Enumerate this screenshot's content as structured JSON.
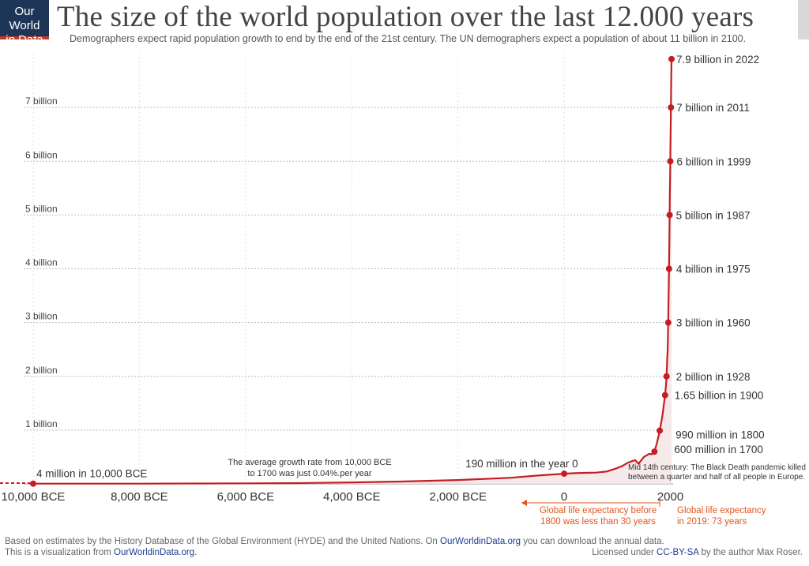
{
  "header": {
    "logo_line1": "Our World",
    "logo_line2": "in Data",
    "title": "The size of the world population over the last 12.000 years",
    "subtitle": "Demographers expect rapid population growth to end by the end of the 21st century. The UN demographers expect a population of about 11 billion in 2100."
  },
  "footer": {
    "source_prefix": "Based on estimates by the History Database of the Global Environment (HYDE) and the United Nations. On ",
    "source_link": "OurWorldinData.org",
    "source_suffix": " you can download the annual data.",
    "viz_prefix": "This is a visualization from ",
    "viz_link": "OurWorldinData.org",
    "viz_suffix": ".",
    "license_prefix": "Licensed under ",
    "license_link": "CC-BY-SA",
    "license_suffix": " by the author Max Roser."
  },
  "colors": {
    "line": "#c41e24",
    "orange_note": "#e2561b",
    "fill": "#f4e3e3",
    "grid": "#bbbbbb",
    "logo_bg": "#1d3557"
  },
  "chart_data": {
    "type": "line",
    "x_unit": "year (negative = BCE)",
    "xlim": [
      -10300,
      2022
    ],
    "ylim": [
      0,
      8000000000
    ],
    "y_ticks": [
      {
        "value": 1000000000,
        "label": "1 billion"
      },
      {
        "value": 2000000000,
        "label": "2 billion"
      },
      {
        "value": 3000000000,
        "label": "3 billion"
      },
      {
        "value": 4000000000,
        "label": "4 billion"
      },
      {
        "value": 5000000000,
        "label": "5 billion"
      },
      {
        "value": 6000000000,
        "label": "6 billion"
      },
      {
        "value": 7000000000,
        "label": "7 billion"
      }
    ],
    "x_ticks": [
      {
        "value": -10000,
        "label": "10,000 BCE"
      },
      {
        "value": -8000,
        "label": "8,000 BCE"
      },
      {
        "value": -6000,
        "label": "6,000 BCE"
      },
      {
        "value": -4000,
        "label": "4,000 BCE"
      },
      {
        "value": -2000,
        "label": "2,000 BCE"
      },
      {
        "value": 0,
        "label": "0"
      },
      {
        "value": 2000,
        "label": "2000"
      }
    ],
    "series": [
      {
        "x": [
          -10000,
          -9000,
          -8000,
          -7000,
          -6000,
          -5000,
          -4000,
          -3000,
          -2000,
          -1000,
          -500,
          0,
          200,
          400,
          600,
          800,
          1000,
          1100,
          1200,
          1300,
          1340,
          1400,
          1500,
          1600,
          1650,
          1700,
          1750,
          1800,
          1850,
          1900,
          1910,
          1920,
          1928,
          1940,
          1950,
          1960,
          1970,
          1975,
          1980,
          1987,
          1990,
          1999,
          2000,
          2011,
          2015,
          2022
        ],
        "y": [
          4000000,
          5000000,
          5000000,
          7000000,
          10000000,
          15000000,
          28000000,
          45000000,
          72000000,
          115000000,
          155000000,
          190000000,
          200000000,
          205000000,
          210000000,
          230000000,
          295000000,
          335000000,
          395000000,
          430000000,
          440000000,
          375000000,
          500000000,
          560000000,
          550000000,
          600000000,
          770000000,
          990000000,
          1260000000,
          1650000000,
          1750000000,
          1860000000,
          2000000000,
          2300000000,
          2530000000,
          3000000000,
          3700000000,
          4000000000,
          4440000000,
          5000000000,
          5330000000,
          6000000000,
          6140000000,
          7000000000,
          7380000000,
          7900000000
        ]
      }
    ],
    "markers": [
      {
        "x": -10000,
        "y": 4000000,
        "label": "4 million in 10,000 BCE"
      },
      {
        "x": 0,
        "y": 190000000,
        "label": "190 million in the year 0"
      },
      {
        "x": 1700,
        "y": 600000000,
        "label": "600 million in 1700"
      },
      {
        "x": 1800,
        "y": 990000000,
        "label": "990 million in 1800"
      },
      {
        "x": 1900,
        "y": 1650000000,
        "label": "1.65 billion in 1900"
      },
      {
        "x": 1928,
        "y": 2000000000,
        "label": "2 billion in 1928"
      },
      {
        "x": 1960,
        "y": 3000000000,
        "label": "3 billion in 1960"
      },
      {
        "x": 1975,
        "y": 4000000000,
        "label": "4 billion in 1975"
      },
      {
        "x": 1987,
        "y": 5000000000,
        "label": "5 billion in 1987"
      },
      {
        "x": 1999,
        "y": 6000000000,
        "label": "6 billion in 1999"
      },
      {
        "x": 2011,
        "y": 7000000000,
        "label": "7 billion in 2011"
      },
      {
        "x": 2022,
        "y": 7900000000,
        "label": "7.9 billion in 2022"
      }
    ],
    "annotations": {
      "growth_line1": "The average growth rate from 10,000 BCE",
      "growth_line2": "to 1700 was just  0.04%.per year",
      "black_death_line1": "Mid 14th century: The Black Death pandemic killed",
      "black_death_line2": "between a quarter and half of all people in Europe.",
      "life_before_line1": "Global life expectancy before",
      "life_before_line2": "1800 was less than 30 years",
      "life_2019_line1": "Global life expectancy",
      "life_2019_line2": "in 2019: 73 years"
    }
  }
}
